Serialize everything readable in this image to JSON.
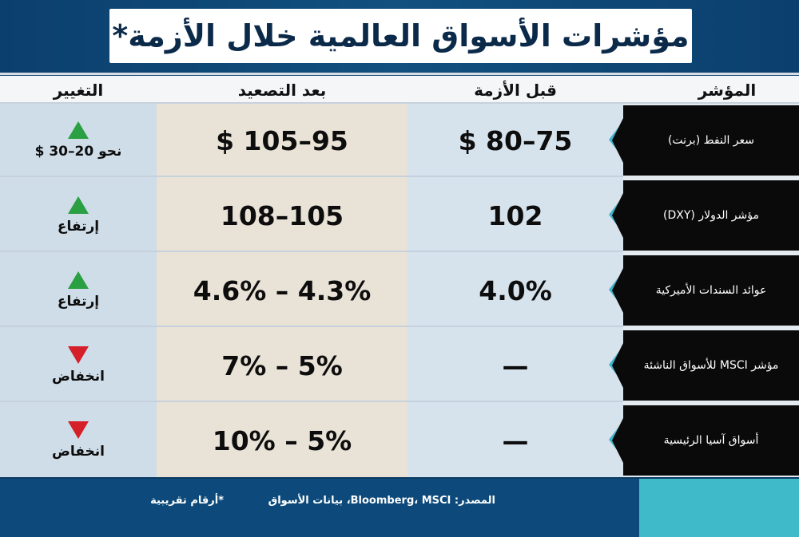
{
  "title": "مؤشرات الأسواق العالمية خلال الأزمة*",
  "columns": {
    "indicator": "المؤشر",
    "before": "قبل الأزمة",
    "after": "بعد التصعيد",
    "change": "التغيير"
  },
  "rows": [
    {
      "indicator": "سعر النفط (برنت)",
      "before": "$ 80–75",
      "after": "$ 105–95",
      "direction": "up",
      "change": "نحو 20–30 $"
    },
    {
      "indicator": "مؤشر الدولار (DXY)",
      "before": "102",
      "after": "108–105",
      "direction": "up",
      "change": "إرتفاع"
    },
    {
      "indicator": "عوائد السندات الأميركية",
      "before": "4.0%",
      "after": "4.6% – 4.3%",
      "direction": "up",
      "change": "إرتفاع"
    },
    {
      "indicator": "مؤشر MSCI للأسواق الناشئة",
      "before": "—",
      "after": "7% – 5%",
      "direction": "down",
      "change": "انخفاض"
    },
    {
      "indicator": "أسواق آسيا الرئيسية",
      "before": "—",
      "after": "10% – 5%",
      "direction": "down",
      "change": "انخفاض"
    }
  ],
  "footer": {
    "source": "المصدر:  Bloomberg، MSCI، بيانات الأسواق",
    "note": "*أرقام تقريبية"
  },
  "colors": {
    "navy": "#0d4a7b",
    "cyan": "#3fbac9",
    "up": "#2aa043",
    "down": "#d5202a"
  }
}
